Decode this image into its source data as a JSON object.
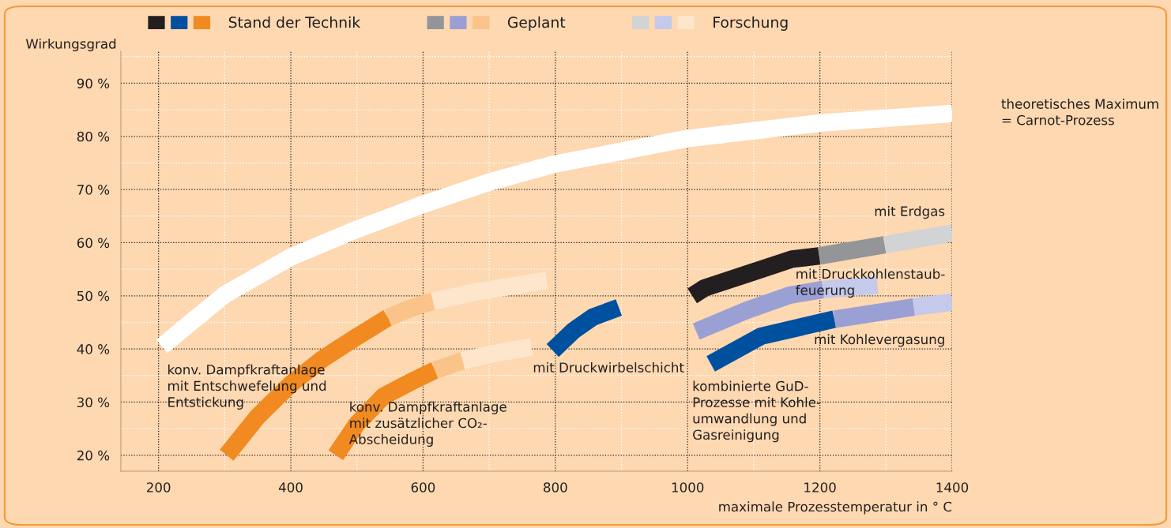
{
  "chart_data": {
    "type": "line",
    "xlabel": "maximale Prozesstemperatur in ° C",
    "ylabel": "Wirkungsgrad",
    "xlim": [
      143,
      1400
    ],
    "ylim": [
      17,
      96
    ],
    "xticks": [
      200,
      400,
      600,
      800,
      1000,
      1200,
      1400
    ],
    "yticks": [
      {
        "value": 20,
        "label": "20 %"
      },
      {
        "value": 30,
        "label": "30 %"
      },
      {
        "value": 40,
        "label": "40 %"
      },
      {
        "value": 50,
        "label": "50 %"
      },
      {
        "value": 60,
        "label": "60 %"
      },
      {
        "value": 70,
        "label": "70 %"
      },
      {
        "value": 80,
        "label": "80 %"
      },
      {
        "value": 90,
        "label": "90 %"
      }
    ],
    "grid": true,
    "legend": "top",
    "marker": "none",
    "line_style": "solid",
    "series": [
      {
        "color": "#231f20",
        "x": [
          1007,
          1026,
          1090,
          1158,
          1199
        ],
        "values": [
          50.0,
          51.5,
          54.1,
          56.9,
          57.5
        ]
      },
      {
        "color": "#0050a0",
        "x": [
          796,
          828,
          857,
          896
        ],
        "values": [
          39.7,
          43.5,
          46.0,
          47.8
        ]
      },
      {
        "color": "#0050a0",
        "x": [
          1035,
          1111,
          1222
        ],
        "values": [
          37.2,
          42.4,
          45.6
        ]
      },
      {
        "color": "#f18a21",
        "x": [
          468,
          500,
          540,
          580,
          618
        ],
        "values": [
          20.0,
          25.9,
          31.1,
          33.7,
          36.0
        ]
      },
      {
        "name": "Stand der Technik",
        "color": "#f18a21",
        "x": [
          303,
          350,
          400,
          450,
          500,
          547
        ],
        "values": [
          20.0,
          27.3,
          33.4,
          38.3,
          42.3,
          45.9
        ]
      },
      {
        "color": "#939598",
        "x": [
          1199,
          1298
        ],
        "values": [
          57.5,
          59.6
        ]
      },
      {
        "color": "#9aa0d4",
        "x": [
          1013,
          1090,
          1154,
          1205
        ],
        "values": [
          43.3,
          47.3,
          50.1,
          51.2
        ]
      },
      {
        "color": "#9aa0d4",
        "x": [
          1222,
          1342
        ],
        "values": [
          45.6,
          47.9
        ]
      },
      {
        "color": "#f9c38a",
        "x": [
          618,
          660
        ],
        "values": [
          36.0,
          37.8
        ]
      },
      {
        "name": "Geplant",
        "color": "#f9c38a",
        "x": [
          547,
          580,
          615
        ],
        "values": [
          45.9,
          47.6,
          49.0
        ]
      },
      {
        "color": "#d1d3d4",
        "x": [
          1298,
          1400
        ],
        "values": [
          59.6,
          61.8
        ]
      },
      {
        "color": "#c5c9ea",
        "x": [
          1205,
          1287
        ],
        "values": [
          51.2,
          52.0
        ]
      },
      {
        "color": "#c5c9ea",
        "x": [
          1342,
          1400
        ],
        "values": [
          47.9,
          48.8
        ]
      },
      {
        "color": "#fde6cc",
        "x": [
          660,
          710,
          764
        ],
        "values": [
          37.8,
          39.2,
          40.4
        ]
      },
      {
        "name": "Forschung",
        "color": "#fde6cc",
        "x": [
          615,
          682,
          787
        ],
        "values": [
          49.0,
          50.8,
          52.9
        ]
      },
      {
        "color": "#ffffff",
        "x": [
          205,
          300,
          400,
          500,
          600,
          700,
          796,
          1000,
          1200,
          1400
        ],
        "values": [
          40.5,
          50.2,
          57.3,
          62.5,
          67.2,
          71.4,
          74.7,
          79.6,
          82.5,
          84.3
        ]
      }
    ],
    "annotations": [
      "konv. Dampfkraftanlage\nmit Entschwefelung und\nEntstickung",
      "konv. Dampfkraftanlage\nmit zusätzlicher CO₂-\nAbscheidung",
      "mit Druckwirbelschicht",
      "kombinierte GuD-\nProzesse mit Kohle-\numwandlung und\nGasreinigung",
      "mit Erdgas",
      "mit Druckkohlenstaub-\nfeuerung",
      "mit Kohlevergasung",
      "theoretisches Maximum\n= Carnot-Prozess"
    ]
  }
}
